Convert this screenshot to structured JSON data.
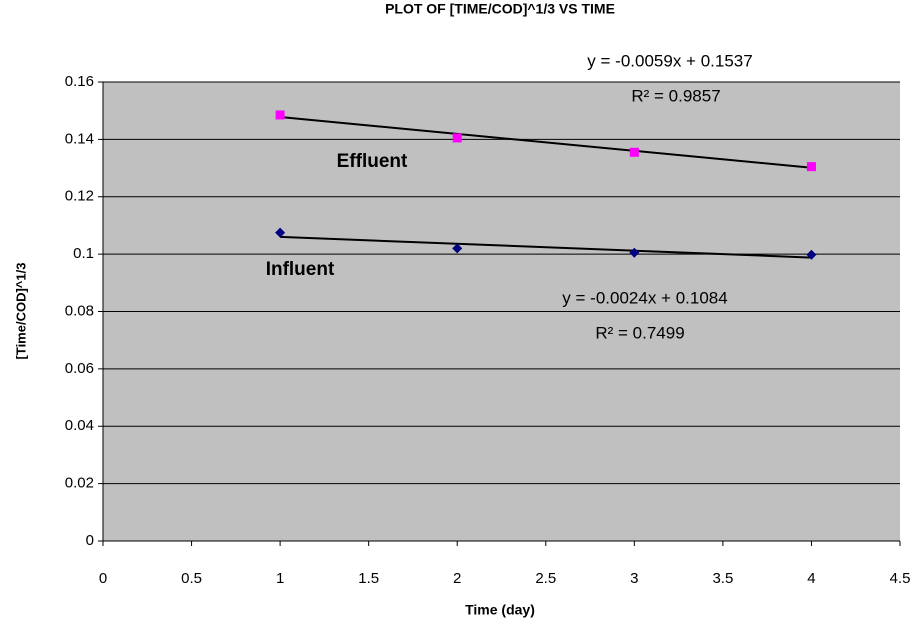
{
  "chart_data": {
    "type": "scatter",
    "title": "PLOT  OF  [TIME/COD]^1/3  VS TIME",
    "x_label": "Time (day)",
    "y_label": "[Time/COD]^1/3",
    "xlim": [
      0,
      4.5
    ],
    "xticks": [
      0,
      0.5,
      1,
      1.5,
      2,
      2.5,
      3,
      3.5,
      4,
      4.5
    ],
    "ylim": [
      0,
      0.16
    ],
    "yticks": [
      0,
      0.02,
      0.04,
      0.06,
      0.08,
      0.1,
      0.12,
      0.14,
      0.16
    ],
    "grid": true,
    "series": [
      {
        "name": "Effluent",
        "color": "#ff00ff",
        "marker": "square",
        "x": [
          1,
          2,
          3,
          4
        ],
        "values": [
          0.1485,
          0.1405,
          0.1355,
          0.1305
        ],
        "trendline": {
          "slope": -0.0059,
          "intercept": 0.1537,
          "equation": "y = -0.0059x + 0.1537",
          "r2": "R² = 0.9857"
        }
      },
      {
        "name": "Influent",
        "color": "#000080",
        "marker": "diamond",
        "x": [
          1,
          2,
          3,
          4
        ],
        "values": [
          0.1075,
          0.102,
          0.1005,
          0.0998
        ],
        "trendline": {
          "slope": -0.0024,
          "intercept": 0.1084,
          "equation": "y = -0.0024x + 0.1084",
          "r2": "R² = 0.7499"
        }
      }
    ]
  }
}
